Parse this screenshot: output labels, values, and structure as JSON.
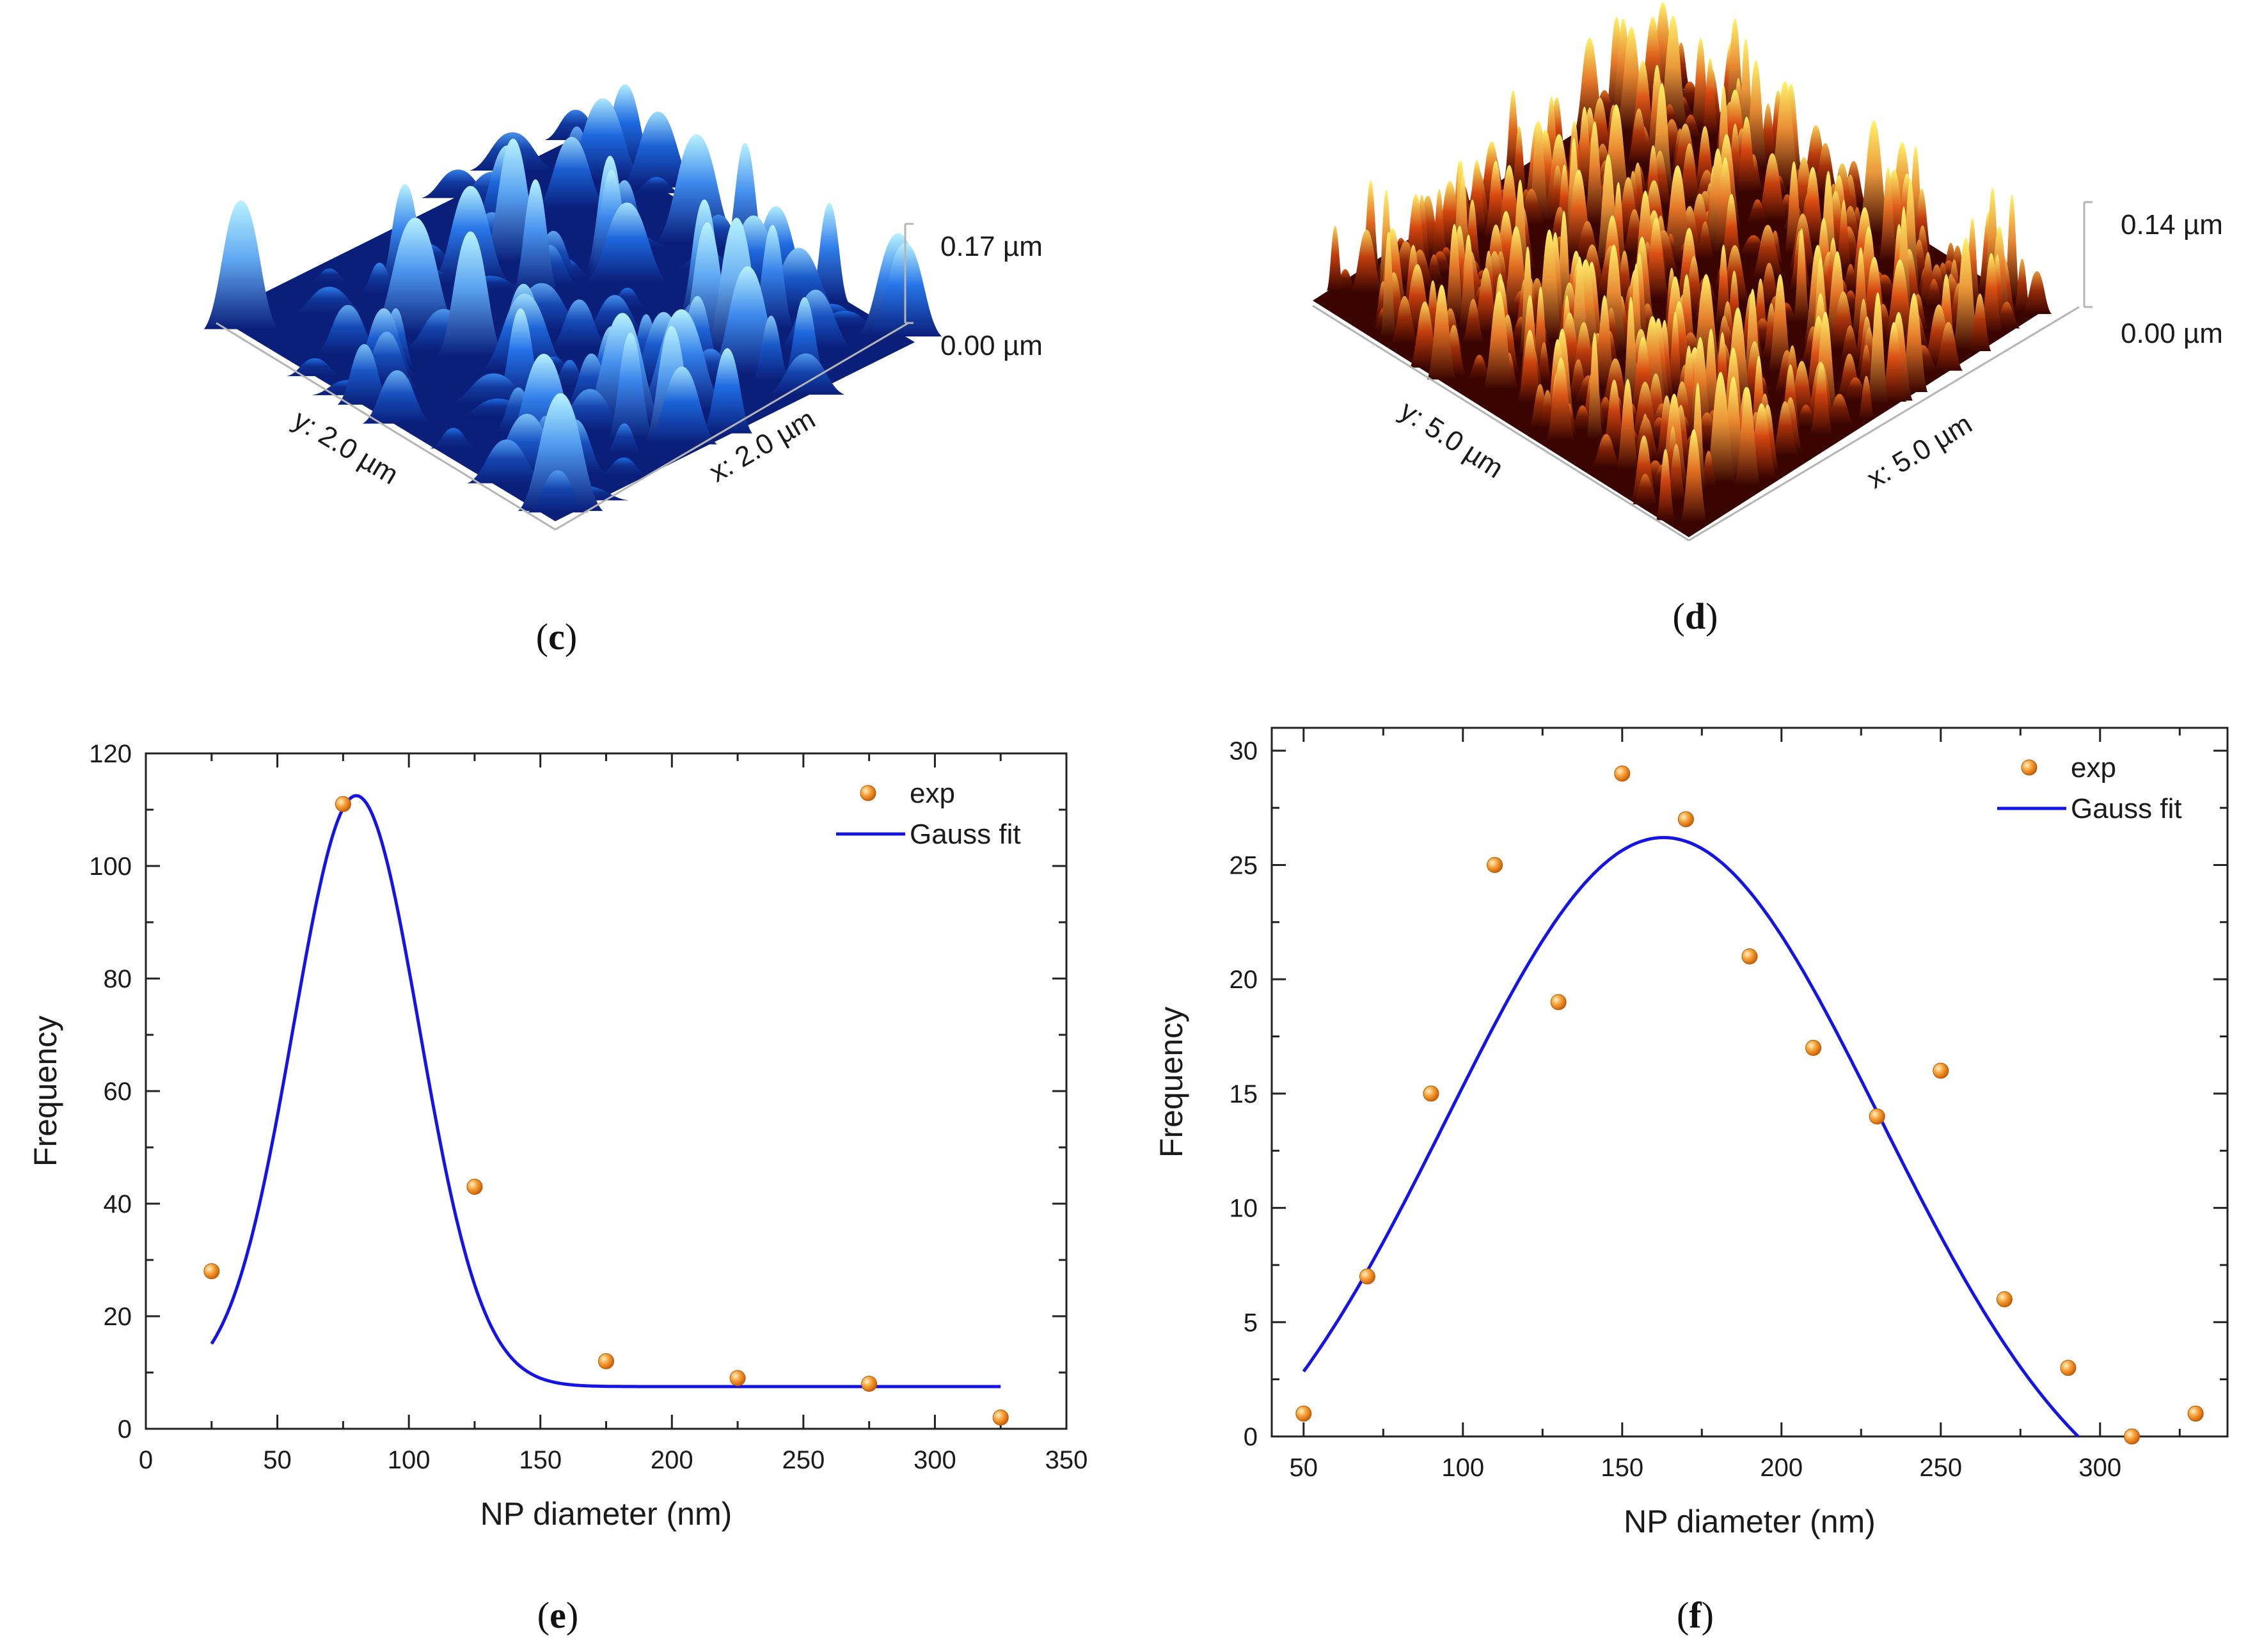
{
  "panels": {
    "c": {
      "label_open": "(",
      "label_letter": "c",
      "label_close": ")",
      "scale_top": "0.17 µm",
      "scale_bottom": "0.00 µm",
      "y_axis_label": "y: 2.0 µm",
      "x_axis_label": "x: 2.0 µm",
      "colors": {
        "base": "#0a1f7a",
        "mid": "#1f6fe8",
        "peak": "#b8f3ff"
      }
    },
    "d": {
      "label_open": "(",
      "label_letter": "d",
      "label_close": ")",
      "scale_top": "0.14 µm",
      "scale_bottom": "0.00 µm",
      "y_axis_label": "y: 5.0 µm",
      "x_axis_label": "x: 5.0 µm",
      "colors": {
        "base": "#3a0500",
        "mid": "#d9480f",
        "peak": "#fff36a"
      }
    },
    "e": {
      "label_open": "(",
      "label_letter": "e",
      "label_close": ")"
    },
    "f": {
      "label_open": "(",
      "label_letter": "f",
      "label_close": ")"
    }
  },
  "chart_data": [
    {
      "id": "e",
      "type": "scatter",
      "xlabel": "NP diameter (nm)",
      "ylabel": "Frequency",
      "xlim": [
        0,
        350
      ],
      "ylim": [
        0,
        120
      ],
      "xticks": [
        0,
        50,
        100,
        150,
        200,
        250,
        300,
        350
      ],
      "yticks": [
        0,
        20,
        40,
        60,
        80,
        100,
        120
      ],
      "grid": false,
      "legend_position": "top-right",
      "series": [
        {
          "name": "exp",
          "kind": "points",
          "color": "#f28a1e",
          "x": [
            25,
            75,
            125,
            175,
            225,
            275,
            325
          ],
          "y": [
            28,
            111,
            43,
            12,
            9,
            8,
            2
          ]
        },
        {
          "name": "Gauss fit",
          "kind": "line",
          "color": "#1414e6",
          "model": {
            "y0": 7.5,
            "A": 105,
            "xc": 80,
            "sigma": 24
          },
          "x_range": [
            25,
            325
          ]
        }
      ]
    },
    {
      "id": "f",
      "type": "scatter",
      "xlabel": "NP diameter (nm)",
      "ylabel": "Frequency",
      "xlim": [
        40,
        340
      ],
      "ylim": [
        0,
        31
      ],
      "xticks": [
        50,
        100,
        150,
        200,
        250,
        300
      ],
      "yticks": [
        0,
        5,
        10,
        15,
        20,
        25,
        30
      ],
      "grid": false,
      "legend_position": "top-right",
      "series": [
        {
          "name": "exp",
          "kind": "points",
          "color": "#f28a1e",
          "x": [
            50,
            70,
            90,
            110,
            130,
            150,
            170,
            190,
            210,
            230,
            250,
            270,
            290,
            310,
            330
          ],
          "y": [
            1,
            7,
            15,
            25,
            19,
            29,
            27,
            21,
            17,
            14,
            16,
            6,
            3,
            0,
            1
          ]
        },
        {
          "name": "Gauss fit",
          "kind": "line",
          "color": "#1414e6",
          "model": {
            "y0": -5,
            "A": 31.2,
            "xc": 163,
            "sigma": 68
          },
          "x_range": [
            50,
            320
          ]
        }
      ]
    }
  ]
}
